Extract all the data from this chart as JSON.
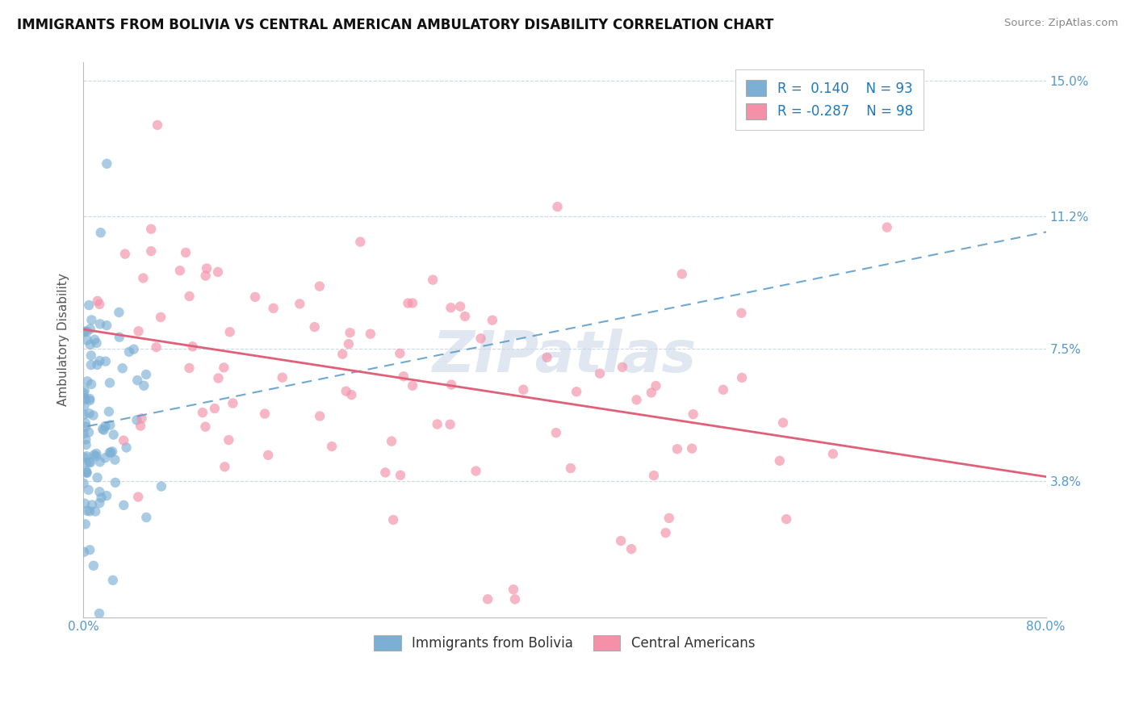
{
  "title": "IMMIGRANTS FROM BOLIVIA VS CENTRAL AMERICAN AMBULATORY DISABILITY CORRELATION CHART",
  "source": "Source: ZipAtlas.com",
  "ylabel": "Ambulatory Disability",
  "xlim": [
    0.0,
    0.8
  ],
  "ylim": [
    0.0,
    0.155
  ],
  "yticks": [
    0.038,
    0.075,
    0.112,
    0.15
  ],
  "ytick_labels": [
    "3.8%",
    "7.5%",
    "11.2%",
    "15.0%"
  ],
  "xticks": [
    0.0,
    0.1,
    0.2,
    0.3,
    0.4,
    0.5,
    0.6,
    0.7,
    0.8
  ],
  "xtick_labels": [
    "0.0%",
    "",
    "",
    "",
    "",
    "",
    "",
    "",
    "80.0%"
  ],
  "bolivia_color": "#7bafd4",
  "central_color": "#f490a8",
  "bolivia_R": 0.14,
  "bolivia_N": 93,
  "central_R": -0.287,
  "central_N": 98,
  "watermark": "ZIPatlas",
  "trend_blue": "#5599cc",
  "trend_pink": "#e0607a",
  "axis_tick_color": "#5599cc",
  "grid_color": "#ccd8e8",
  "background_color": "#ffffff",
  "legend_text_color": "#1a7abf",
  "title_fontsize": 12,
  "legend_box_color": "#dddddd"
}
